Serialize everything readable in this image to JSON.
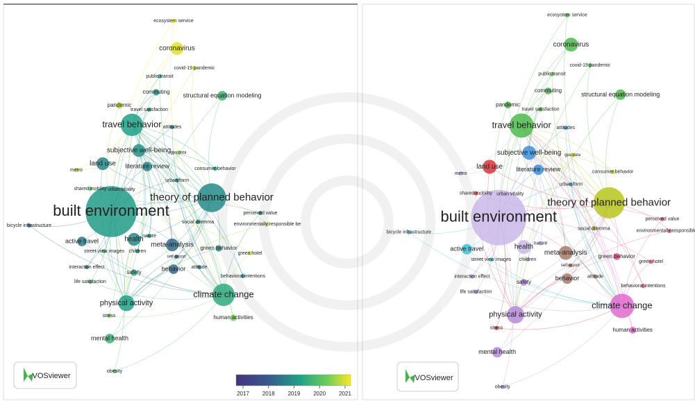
{
  "left_panel": {
    "nodes": [
      "ecosystem service",
      "coronavirus",
      "covid-19 pandemic",
      "public transit",
      "commuting",
      "structural equation modeling",
      "pandemic",
      "travel satisfaction",
      "travel behavior",
      "attitudes",
      "subjective well-being",
      "gps data",
      "literature review",
      "consumer behavior",
      "land use",
      "urban form",
      "metro",
      "shared mobility",
      "urban vitality",
      "theory of planned behavior",
      "built environment",
      "perceived value",
      "social dilemma",
      "environmentally responsible be",
      "bicycle infrastructure",
      "nature",
      "health",
      "active travel",
      "meta-analysis",
      "green behavior",
      "street view images",
      "children",
      "self-report",
      "green hotel",
      "interaction effect",
      "behavior",
      "attitude",
      "behavioral intentions",
      "safety",
      "life satisfaction",
      "climate change",
      "physical activity",
      "stress",
      "human activities",
      "mental health",
      "obesity"
    ],
    "logo": "VOSviewer",
    "legend": {
      "ticks": [
        2017,
        2018,
        2019,
        2020,
        2021
      ]
    }
  },
  "right_panel": {
    "nodes": [
      "ecosystem service",
      "coronavirus",
      "covid-19 pandemic",
      "public transit",
      "commuting",
      "structural equation modeling",
      "pandemic",
      "travel satisfaction",
      "travel behavior",
      "attitudes",
      "subjective well-being",
      "gps data",
      "literature review",
      "consumer behavior",
      "land use",
      "urban form",
      "metro",
      "shared mobility",
      "urban vitality",
      "theory of planned behavior",
      "built environment",
      "perceived value",
      "social dilemma",
      "environmentally responsible be",
      "bicycle infrastructure",
      "nature",
      "health",
      "active travel",
      "meta-analysis",
      "green behavior",
      "street view images",
      "children",
      "self-report",
      "green hotel",
      "interaction effect",
      "behavior",
      "attitude",
      "behavioral intentions",
      "safety",
      "life satisfaction",
      "climate change",
      "physical activity",
      "stress",
      "human activities",
      "mental health",
      "obesity"
    ],
    "logo": "VOSviewer"
  }
}
